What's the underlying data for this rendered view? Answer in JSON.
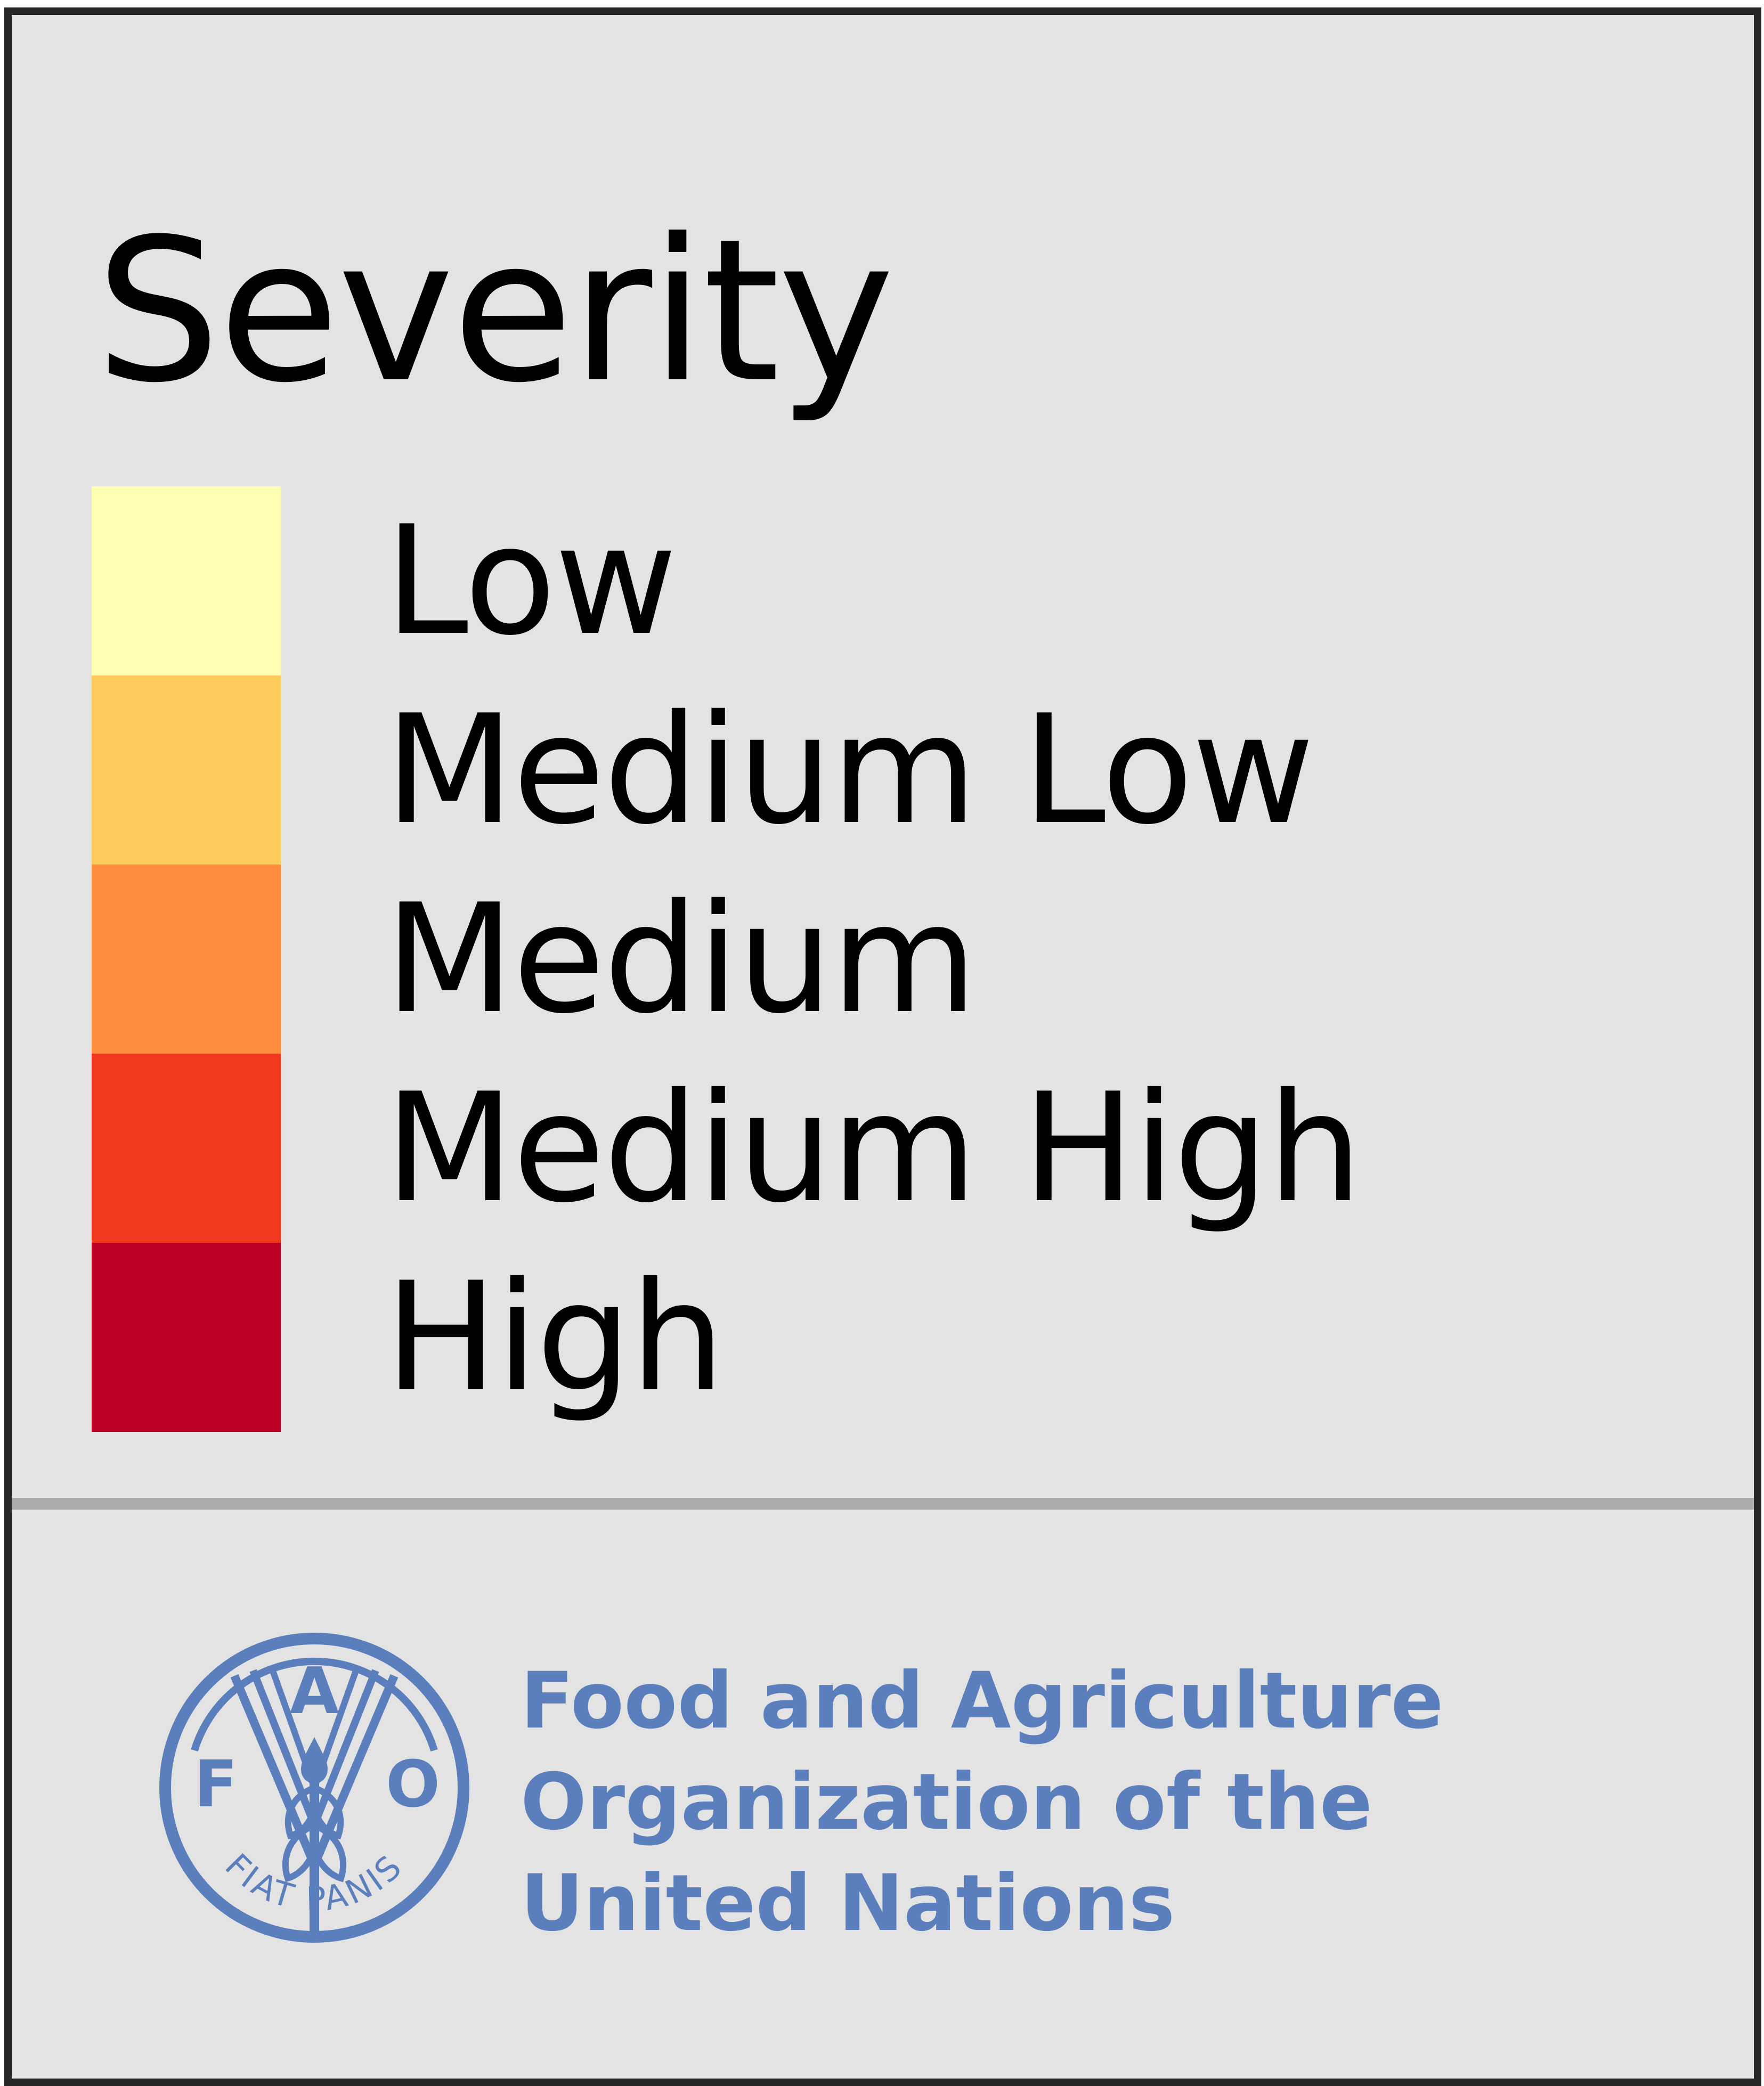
{
  "legend": {
    "title": "Severity",
    "items": [
      {
        "label": "Low",
        "color": "#ffffb2"
      },
      {
        "label": "Medium Low",
        "color": "#fecc5c"
      },
      {
        "label": "Medium",
        "color": "#fd8d3c"
      },
      {
        "label": "Medium High",
        "color": "#f03b20"
      },
      {
        "label": "High",
        "color": "#bd0026"
      }
    ]
  },
  "organization": {
    "name_lines": [
      "Food and Agriculture",
      "Organization of the",
      "United Nations"
    ],
    "logo": {
      "letters": [
        "F",
        "A",
        "O"
      ],
      "motto": "FIAT PANIS",
      "color": "#5b7fbc"
    }
  },
  "colors": {
    "panel_background": "#e3e3e3",
    "border": "#262626",
    "divider": "#ababab",
    "text": "#000000"
  }
}
